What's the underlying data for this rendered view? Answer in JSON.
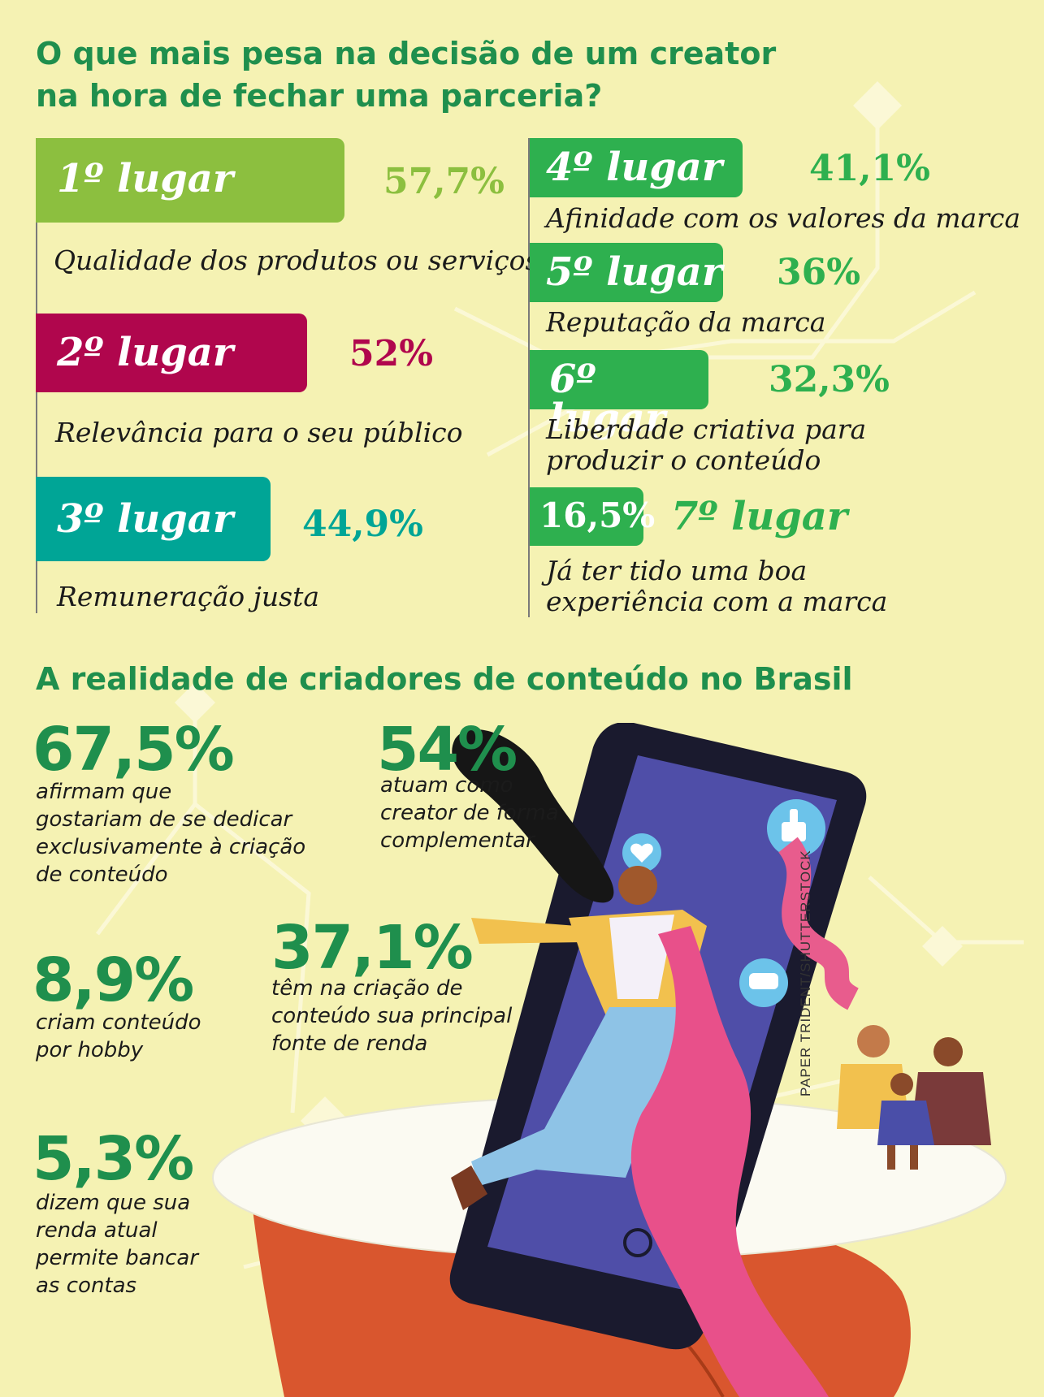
{
  "colors": {
    "background": "#f5f2b3",
    "title_green": "#1f8f4d",
    "rank1": "#8cbf3f",
    "rank2": "#b0064d",
    "rank3": "#00a596",
    "rank_other": "#2eb04f"
  },
  "section1": {
    "title_line1": "O que mais pesa na decisão de um creator",
    "title_line2": "na hora de fechar uma parceria?",
    "ranks": [
      {
        "rank": "1º lugar",
        "percent": "57,7%",
        "description": "Qualidade dos produtos ou serviços",
        "value": 57.7
      },
      {
        "rank": "2º lugar",
        "percent": "52%",
        "description": "Relevância para o seu público",
        "value": 52
      },
      {
        "rank": "3º lugar",
        "percent": "44,9%",
        "description": "Remuneração justa",
        "value": 44.9
      },
      {
        "rank": "4º lugar",
        "percent": "41,1%",
        "description": "Afinidade com os valores da marca",
        "value": 41.1
      },
      {
        "rank": "5º lugar",
        "percent": "36%",
        "description": "Reputação da marca",
        "value": 36
      },
      {
        "rank": "6º lugar",
        "percent": "32,3%",
        "description_line1": "Liberdade criativa para",
        "description_line2": "produzir o conteúdo",
        "value": 32.3
      },
      {
        "rank": "7º lugar",
        "percent": "16,5%",
        "description_line1": "Já ter tido uma boa",
        "description_line2": "experiência com a marca",
        "value": 16.5
      }
    ]
  },
  "section2": {
    "title": "A realidade de criadores de conteúdo no Brasil",
    "stats": [
      {
        "value": "67,5%",
        "lines": [
          "afirmam que",
          "gostariam de se dedicar",
          "exclusivamente à criação",
          "de conteúdo"
        ]
      },
      {
        "value": "54%",
        "lines": [
          "atuam como",
          "creator de forma",
          "complementar"
        ]
      },
      {
        "value": "8,9%",
        "lines": [
          "criam conteúdo",
          "por hobby"
        ]
      },
      {
        "value": "37,1%",
        "lines": [
          "têm na criação de",
          "conteúdo sua principal",
          "fonte de renda"
        ]
      },
      {
        "value": "5,3%",
        "lines": [
          "dizem que sua",
          "renda atual",
          "permite bancar",
          "as contas"
        ]
      }
    ]
  },
  "credit": "PAPER TRIDENT/SHUTTERSTOCK",
  "illustration": {
    "icons": [
      "thumbs-up-icon",
      "heart-icon",
      "chat-bubble-icon",
      "smartphone",
      "hand",
      "woman-flying",
      "couple-with-child"
    ]
  }
}
